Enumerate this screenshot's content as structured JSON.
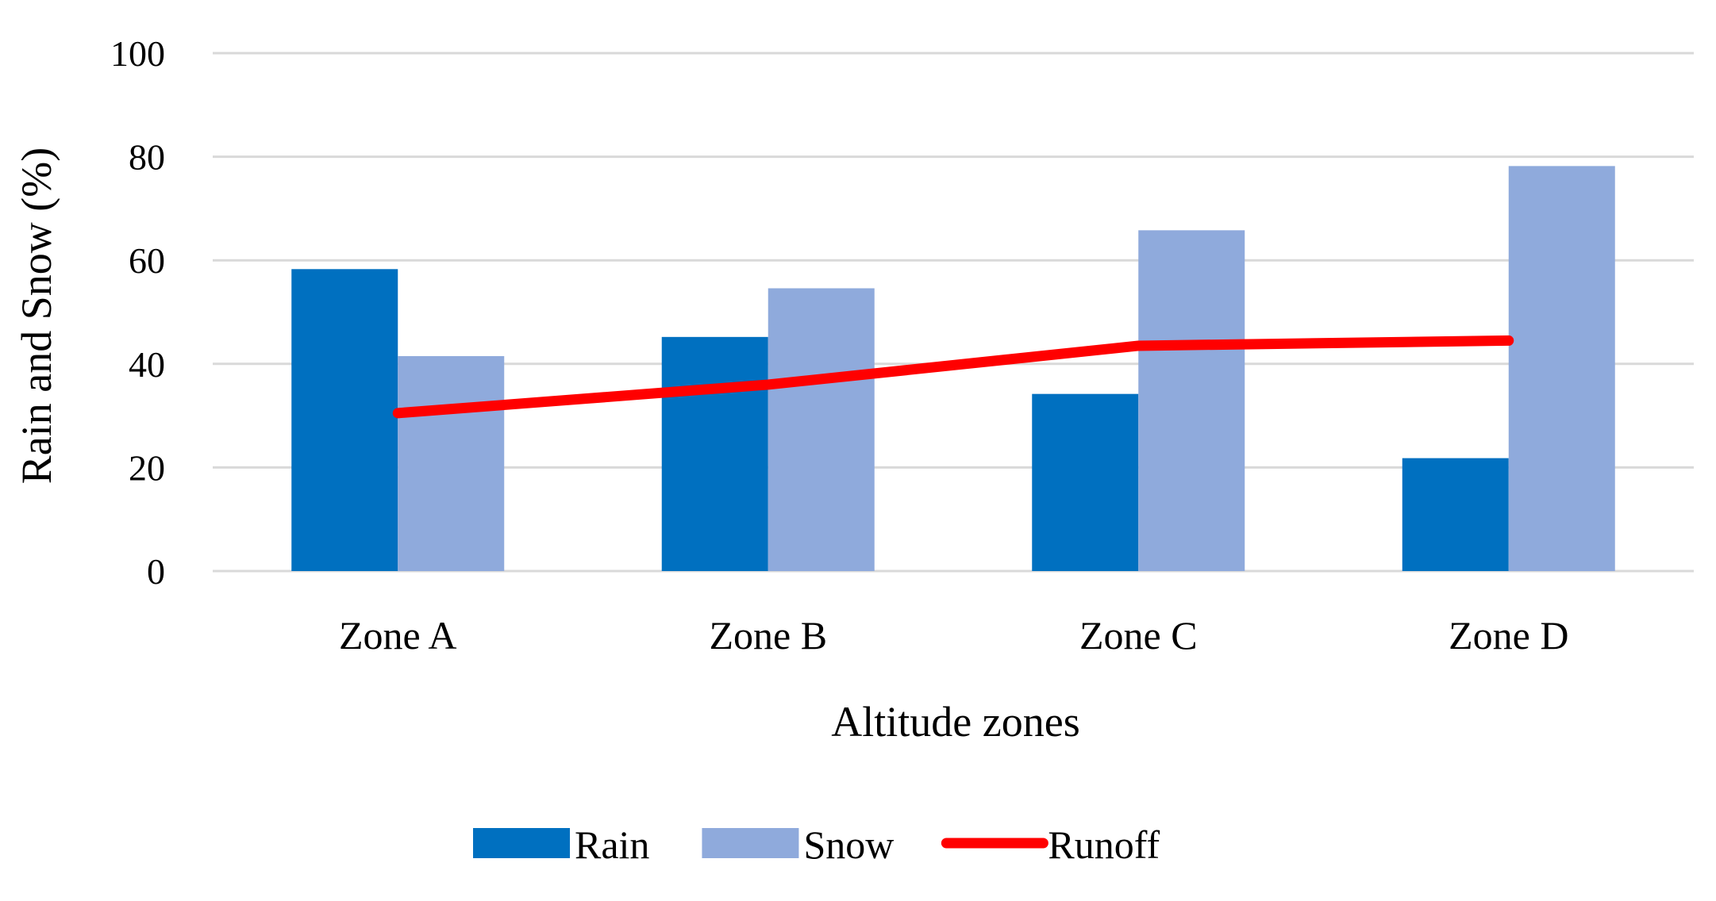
{
  "chart_data": {
    "type": "bar",
    "title": "",
    "xlabel": "Altitude zones",
    "ylabel": "Rain and Snow (%)",
    "ylim": [
      0,
      100
    ],
    "yticks": [
      0,
      20,
      40,
      60,
      80,
      100
    ],
    "grid": true,
    "legend_position": "bottom",
    "categories": [
      "Zone A",
      "Zone B",
      "Zone C",
      "Zone D"
    ],
    "series": [
      {
        "name": "Rain",
        "kind": "bar",
        "color": "#0070C0",
        "values": [
          58.3,
          45.2,
          34.2,
          21.8
        ]
      },
      {
        "name": "Snow",
        "kind": "bar",
        "color": "#8FAADC",
        "values": [
          41.5,
          54.6,
          65.8,
          78.2
        ]
      },
      {
        "name": "Runoff",
        "kind": "line",
        "color": "#FF0000",
        "values": [
          30.5,
          36.0,
          43.5,
          44.5
        ]
      }
    ]
  }
}
